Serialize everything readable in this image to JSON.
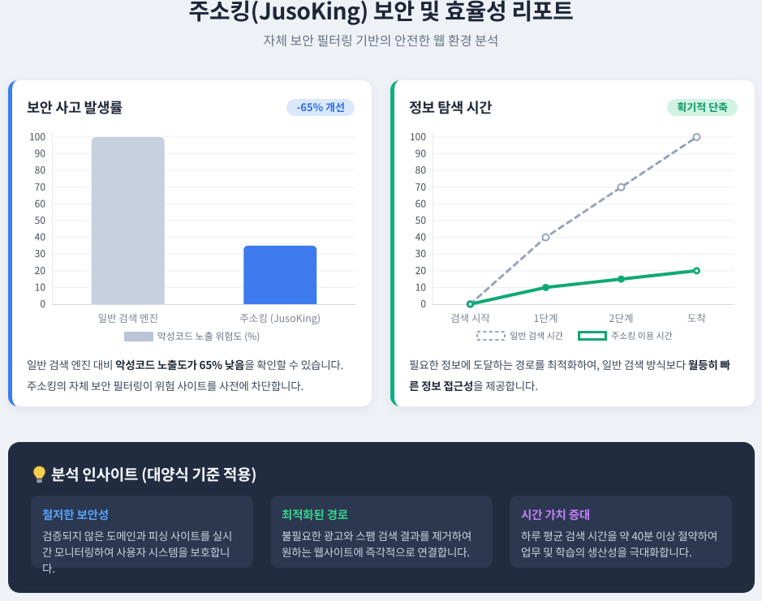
{
  "page": {
    "title": "주소킹(JusoKing) 보안 및 효율성 리포트",
    "subtitle": "자체 보안 필터링 기반의 안전한 웹 환경 분석"
  },
  "security_card": {
    "title": "보안 사고 발생률",
    "badge": "-65% 개선",
    "accent_color": "#3a7df0",
    "description": [
      {
        "text": "일반 검색 엔진 대비 ",
        "bold": false
      },
      {
        "text": "악성코드 노출도가 65% 낮음",
        "bold": true
      },
      {
        "text": "을 확인할 수 있습니다. 주소킹의 자체 보안 필터링이 위험 사이트를 사전에 차단합니다.",
        "bold": false
      }
    ]
  },
  "time_card": {
    "title": "정보 탐색 시간",
    "badge": "획기적 단축",
    "accent_color": "#0eb080",
    "description": [
      {
        "text": "필요한 정보에 도달하는 경로를 최적화하여, 일반 검색 방식보다 ",
        "bold": false
      },
      {
        "text": "월등히 빠른 정보 접근성",
        "bold": true
      },
      {
        "text": "을 제공합니다.",
        "bold": false
      }
    ]
  },
  "chart_data": [
    {
      "type": "bar",
      "title": "보안 사고 발생률",
      "categories": [
        "일반 검색 엔진",
        "주소킹 (JusoKing)"
      ],
      "values": [
        100,
        35
      ],
      "bar_colors": [
        "#c6d0de",
        "#3d7bee"
      ],
      "ylim": [
        0,
        100
      ],
      "ytick_step": 10,
      "grid": true,
      "legend_position": "bottom",
      "legend": [
        {
          "label": "악성코드 노출 위험도 (%)",
          "swatch_color": "#bac6d8",
          "swatch_style": "filled"
        }
      ]
    },
    {
      "type": "line",
      "title": "정보 탐색 시간",
      "categories": [
        "검색 시작",
        "1단계",
        "2단계",
        "도착"
      ],
      "series": [
        {
          "name": "일반 검색 시간",
          "values": [
            0,
            40,
            70,
            100
          ],
          "color": "#97a4bd",
          "dashed": true,
          "marker": "open"
        },
        {
          "name": "주소킹 이용 시간",
          "values": [
            0,
            10,
            15,
            20
          ],
          "color": "#0fa874",
          "dashed": false,
          "marker": "filled"
        }
      ],
      "ylim": [
        0,
        100
      ],
      "ytick_step": 10,
      "grid": true,
      "legend_position": "bottom"
    }
  ],
  "insights": {
    "title": "분석 인사이트 (대양식 기준 적용)",
    "icon": "lightbulb",
    "items": [
      {
        "title": "철저한 보안성",
        "color": "#56a1f8",
        "body": "검증되지 않은 도메인과 피싱 사이트를 실시간 모니터링하여 사용자 시스템을 보호합니다."
      },
      {
        "title": "최적화된 경로",
        "color": "#36d28d",
        "body": "불필요한 광고와 스팸 검색 결과를 제거하여 원하는 웹사이트에 즉각적으로 연결합니다."
      },
      {
        "title": "시간 가치 증대",
        "color": "#c27ff7",
        "body": "하루 평균 검색 시간을 약 40분 이상 절약하여 업무 및 학습의 생산성을 극대화합니다."
      }
    ]
  }
}
